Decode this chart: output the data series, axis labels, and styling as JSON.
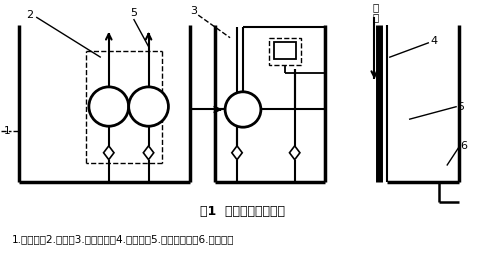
{
  "title": "图1  主、辅油箱示意图",
  "caption": "1.主油箱；2.泵组；3.过滤系统；4.回油管；5.隔板与滤网；6.辅助油箱",
  "bg_color": "#ffffff",
  "line_color": "#000000",
  "title_fontsize": 9,
  "caption_fontsize": 7.5,
  "lw_main": 2.0,
  "lw_thin": 1.0,
  "lw_pump": 1.8
}
